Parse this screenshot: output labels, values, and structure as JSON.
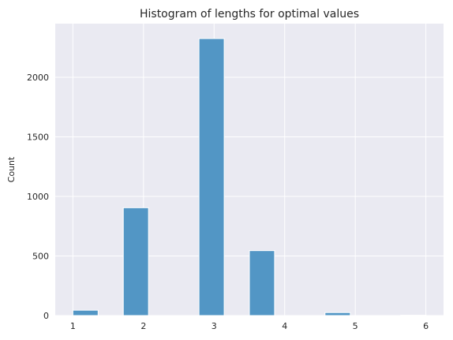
{
  "chart_data": {
    "type": "bar",
    "title": "Histogram of lengths for optimal values",
    "xlabel": "",
    "ylabel": "Count",
    "xlim": [
      0.75,
      6.25
    ],
    "ylim": [
      0,
      2450
    ],
    "x_ticks": [
      "1",
      "2",
      "3",
      "4",
      "5",
      "6"
    ],
    "y_ticks": [
      "0",
      "500",
      "1000",
      "1500",
      "2000"
    ],
    "grid": true,
    "bins": [
      {
        "start": 1.0,
        "end": 1.357,
        "value": 45
      },
      {
        "start": 1.357,
        "end": 1.714,
        "value": 0
      },
      {
        "start": 1.714,
        "end": 2.071,
        "value": 905
      },
      {
        "start": 2.071,
        "end": 2.429,
        "value": 0
      },
      {
        "start": 2.429,
        "end": 2.786,
        "value": 0
      },
      {
        "start": 2.786,
        "end": 3.143,
        "value": 2325
      },
      {
        "start": 3.143,
        "end": 3.5,
        "value": 0
      },
      {
        "start": 3.5,
        "end": 3.857,
        "value": 545
      },
      {
        "start": 3.857,
        "end": 4.214,
        "value": 0
      },
      {
        "start": 4.214,
        "end": 4.571,
        "value": 0
      },
      {
        "start": 4.571,
        "end": 4.929,
        "value": 25
      },
      {
        "start": 4.929,
        "end": 5.286,
        "value": 0
      },
      {
        "start": 5.286,
        "end": 5.643,
        "value": 0
      },
      {
        "start": 5.643,
        "end": 6.0,
        "value": 3
      }
    ],
    "colors": {
      "bar_fill": "#5296c5",
      "bar_edge": "#ffffff",
      "background": "#eaeaf2",
      "grid": "#ffffff",
      "text": "#262626"
    }
  }
}
